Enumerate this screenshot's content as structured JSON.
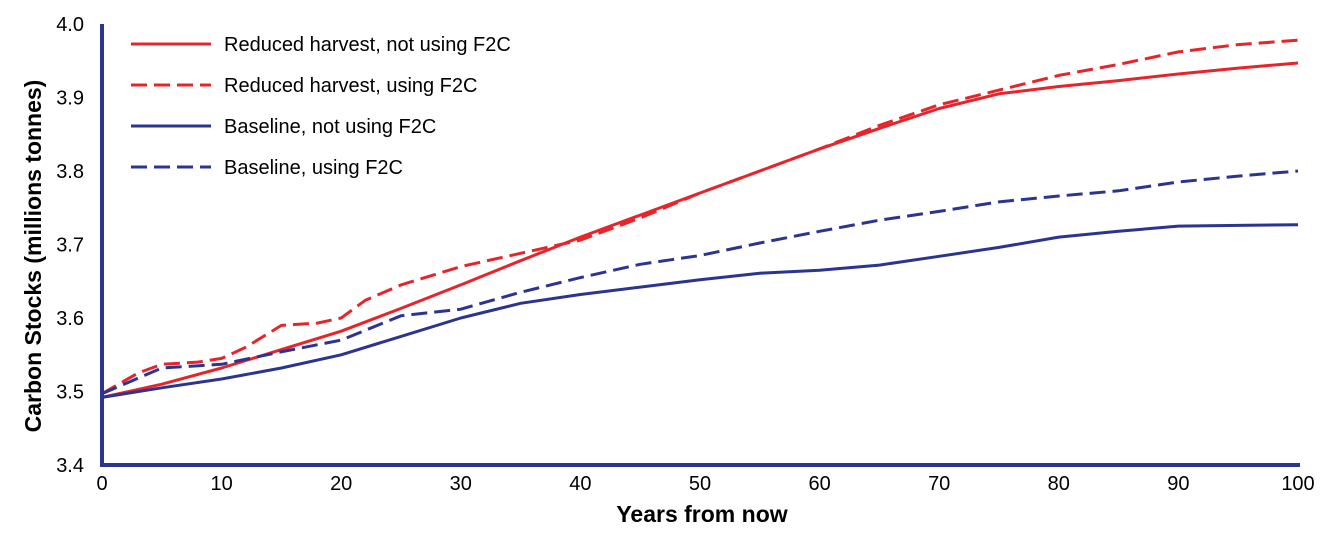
{
  "chart_data": {
    "type": "line",
    "title": "",
    "xlabel": "Years from now",
    "ylabel": "Carbon Stocks (millions tonnes)",
    "xlim": [
      0,
      100
    ],
    "ylim": [
      3.4,
      4.0
    ],
    "x_ticks": [
      "0",
      "10",
      "20",
      "30",
      "40",
      "50",
      "60",
      "70",
      "80",
      "90",
      "100"
    ],
    "y_ticks": [
      "3.4",
      "3.5",
      "3.6",
      "3.7",
      "3.8",
      "3.9",
      "4.0"
    ],
    "grid": false,
    "legend_position": "top-left",
    "series": [
      {
        "name": "Reduced harvest, not using F2C",
        "color": "#e8242b",
        "dash": "solid",
        "x": [
          0,
          5,
          10,
          15,
          20,
          25,
          30,
          35,
          40,
          45,
          50,
          55,
          60,
          65,
          70,
          75,
          80,
          85,
          90,
          95,
          100
        ],
        "y": [
          3.492,
          3.51,
          3.532,
          3.557,
          3.582,
          3.613,
          3.645,
          3.678,
          3.71,
          3.74,
          3.77,
          3.8,
          3.83,
          3.858,
          3.885,
          3.905,
          3.915,
          3.923,
          3.932,
          3.94,
          3.947
        ]
      },
      {
        "name": "Reduced harvest, using F2C",
        "color": "#e8242b",
        "dash": "dashed",
        "x": [
          0,
          3,
          5,
          8,
          10,
          12,
          15,
          18,
          20,
          22,
          25,
          30,
          35,
          40,
          45,
          50,
          55,
          60,
          65,
          70,
          75,
          80,
          85,
          90,
          95,
          100
        ],
        "y": [
          3.497,
          3.525,
          3.537,
          3.54,
          3.545,
          3.56,
          3.59,
          3.593,
          3.6,
          3.624,
          3.645,
          3.67,
          3.688,
          3.706,
          3.736,
          3.77,
          3.8,
          3.83,
          3.862,
          3.89,
          3.91,
          3.93,
          3.945,
          3.962,
          3.972,
          3.978
        ]
      },
      {
        "name": "Baseline, not using F2C",
        "color": "#2b3590",
        "dash": "solid",
        "x": [
          0,
          5,
          10,
          15,
          20,
          25,
          30,
          35,
          40,
          45,
          50,
          55,
          60,
          65,
          70,
          75,
          80,
          85,
          90,
          95,
          100
        ],
        "y": [
          3.492,
          3.505,
          3.517,
          3.532,
          3.55,
          3.575,
          3.6,
          3.62,
          3.632,
          3.642,
          3.652,
          3.661,
          3.665,
          3.672,
          3.684,
          3.696,
          3.71,
          3.718,
          3.725,
          3.726,
          3.727
        ]
      },
      {
        "name": "Baseline, using F2C",
        "color": "#2b3590",
        "dash": "dashed",
        "x": [
          0,
          5,
          10,
          15,
          20,
          25,
          30,
          35,
          40,
          45,
          50,
          55,
          60,
          65,
          70,
          75,
          80,
          85,
          90,
          95,
          100
        ],
        "y": [
          3.497,
          3.532,
          3.537,
          3.554,
          3.57,
          3.603,
          3.612,
          3.635,
          3.655,
          3.673,
          3.685,
          3.702,
          3.718,
          3.733,
          3.745,
          3.758,
          3.766,
          3.773,
          3.785,
          3.793,
          3.8
        ]
      }
    ]
  }
}
